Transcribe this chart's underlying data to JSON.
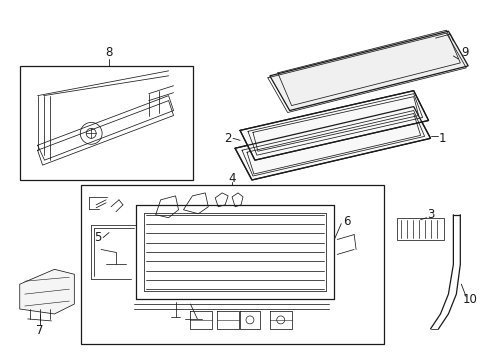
{
  "background_color": "#ffffff",
  "line_color": "#1a1a1a",
  "lw": 0.9,
  "tlw": 0.55,
  "fs": 8.5
}
